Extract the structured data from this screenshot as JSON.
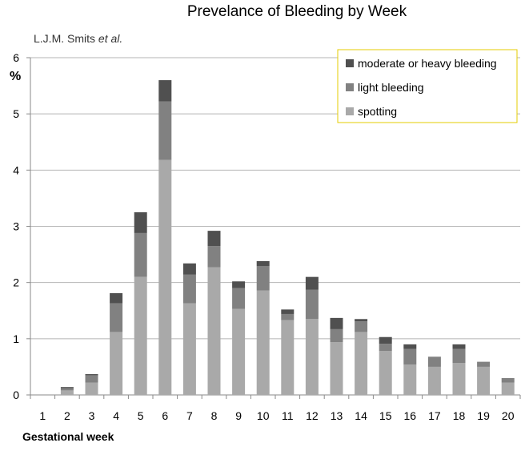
{
  "chart_data": {
    "type": "bar",
    "stacked": true,
    "title": "Prevelance of Bleeding by Week",
    "attribution": "L.J.M. Smits",
    "attribution_italic": " et al.",
    "xlabel": "Gestational week",
    "ylabel": "%",
    "ylim": [
      0,
      6
    ],
    "yticks": [
      0,
      1,
      2,
      3,
      4,
      5,
      6
    ],
    "grid": true,
    "legend_position": "top-right",
    "categories": [
      "1",
      "2",
      "3",
      "4",
      "5",
      "6",
      "7",
      "8",
      "9",
      "10",
      "11",
      "12",
      "13",
      "14",
      "15",
      "16",
      "17",
      "18",
      "19",
      "20"
    ],
    "series": [
      {
        "name": "spotting",
        "color": "#a9a9a9",
        "values": [
          0,
          0.08,
          0.22,
          1.12,
          2.1,
          4.18,
          1.63,
          2.27,
          1.53,
          1.86,
          1.33,
          1.35,
          0.94,
          1.12,
          0.78,
          0.54,
          0.5,
          0.57,
          0.5,
          0.22
        ]
      },
      {
        "name": "light bleeding",
        "color": "#818181",
        "values": [
          0,
          0.04,
          0.13,
          0.51,
          0.78,
          1.04,
          0.51,
          0.38,
          0.37,
          0.43,
          0.11,
          0.52,
          0.23,
          0.19,
          0.13,
          0.28,
          0.18,
          0.25,
          0.09,
          0.08
        ]
      },
      {
        "name": "moderate or heavy bleeding",
        "color": "#505050",
        "values": [
          0,
          0.02,
          0.02,
          0.18,
          0.37,
          0.38,
          0.2,
          0.27,
          0.12,
          0.09,
          0.08,
          0.23,
          0.2,
          0.04,
          0.12,
          0.08,
          0,
          0.08,
          0,
          0
        ]
      }
    ]
  }
}
